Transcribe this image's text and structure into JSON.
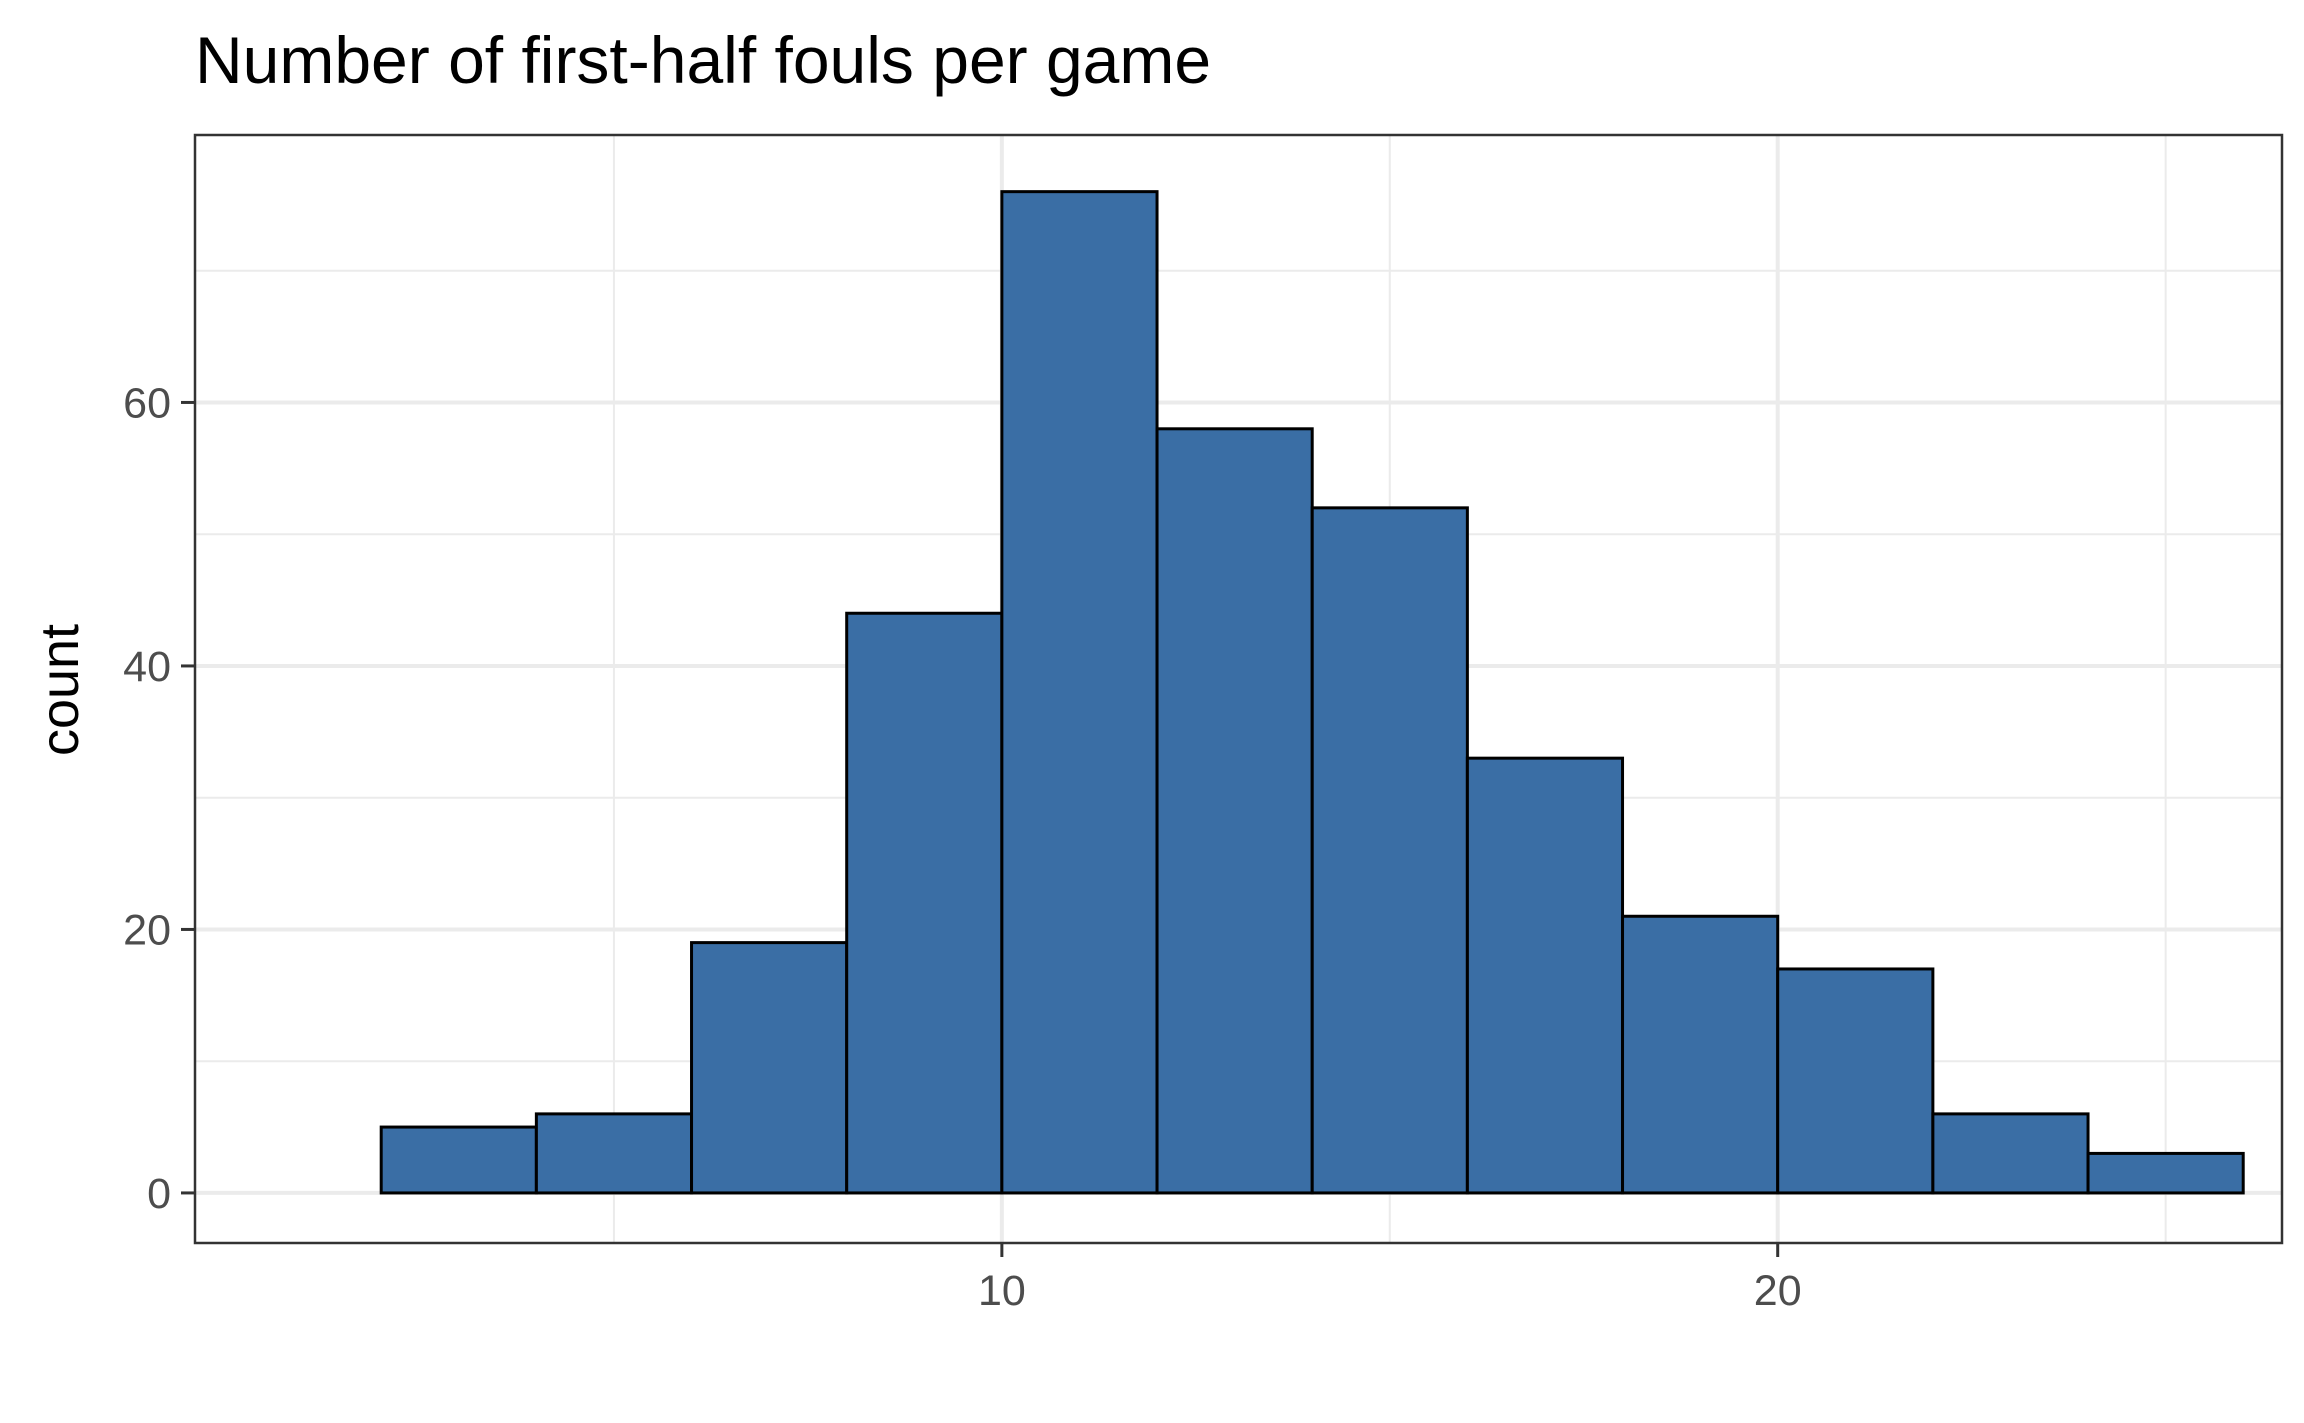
{
  "chart_data": {
    "type": "bar",
    "title": "Number of first-half  fouls per game",
    "xlabel": "",
    "ylabel": "count",
    "bin_width": 2,
    "bins": [
      {
        "x_start": 2,
        "x_end": 4,
        "count": 5
      },
      {
        "x_start": 4,
        "x_end": 6,
        "count": 6
      },
      {
        "x_start": 6,
        "x_end": 8,
        "count": 19
      },
      {
        "x_start": 8,
        "x_end": 10,
        "count": 44
      },
      {
        "x_start": 10,
        "x_end": 12,
        "count": 76
      },
      {
        "x_start": 12,
        "x_end": 14,
        "count": 58
      },
      {
        "x_start": 14,
        "x_end": 16,
        "count": 52
      },
      {
        "x_start": 16,
        "x_end": 18,
        "count": 33
      },
      {
        "x_start": 18,
        "x_end": 20,
        "count": 21
      },
      {
        "x_start": 20,
        "x_end": 22,
        "count": 17
      },
      {
        "x_start": 22,
        "x_end": 24,
        "count": 6
      },
      {
        "x_start": 24,
        "x_end": 26,
        "count": 3
      }
    ],
    "xlim": [
      -0.4,
      26.5
    ],
    "ylim": [
      -3.8,
      80.3
    ],
    "x_ticks": [
      10,
      20
    ],
    "x_tick_labels": [
      "10",
      "20"
    ],
    "x_minor_ticks": [
      5,
      15,
      25
    ],
    "y_ticks": [
      0,
      20,
      40,
      60
    ],
    "y_tick_labels": [
      "0",
      "20",
      "40",
      "60"
    ],
    "y_minor_ticks": [
      10,
      30,
      50,
      70
    ],
    "grid": true,
    "legend": "none",
    "bar_color": "#3a6ea5",
    "bar_outline": "#000000"
  }
}
